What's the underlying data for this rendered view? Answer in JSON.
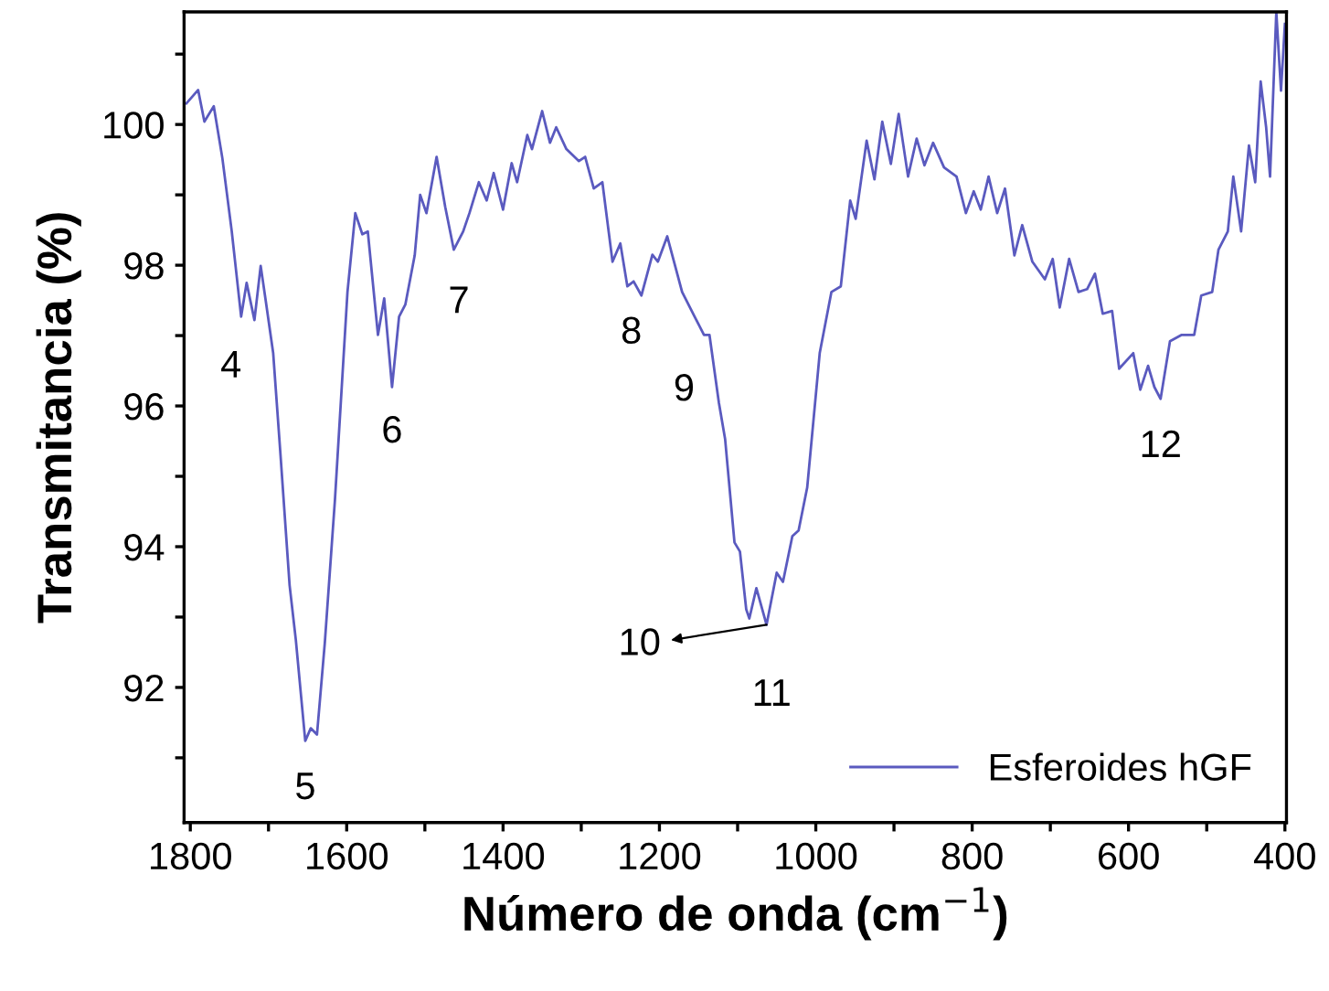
{
  "chart_data": {
    "type": "line",
    "xlabel": "Número de onda (cm$^{−1}$)",
    "ylabel": "Transmitancia (%)",
    "xlim": [
      1808,
      398
    ],
    "ylim": [
      90.08,
      101.6
    ],
    "xticks": [
      1800,
      {
        "value": 1700,
        "label": null
      },
      1600,
      {
        "value": 1500,
        "label": null
      },
      1400,
      {
        "value": 1300,
        "label": null
      },
      1200,
      {
        "value": 1100,
        "label": null
      },
      1000,
      {
        "value": 900,
        "label": null
      },
      800,
      {
        "value": 700,
        "label": null
      },
      600,
      {
        "value": 500,
        "label": null
      },
      400
    ],
    "yticks": [
      {
        "value": 91,
        "label": null
      },
      92,
      {
        "value": 93,
        "label": null
      },
      94,
      {
        "value": 95,
        "label": null
      },
      96,
      {
        "value": 97,
        "label": null
      },
      98,
      {
        "value": 99,
        "label": null
      },
      100,
      {
        "value": 101,
        "label": null
      }
    ],
    "grid": false,
    "legend": "bottom right",
    "series": [
      {
        "name": "Esferoides hGF",
        "color": "#5a5abf",
        "x": [
          1805,
          1790,
          1782,
          1770,
          1759,
          1747,
          1735,
          1728,
          1718,
          1710,
          1704,
          1694,
          1685,
          1673,
          1665,
          1653,
          1646,
          1638,
          1628,
          1615,
          1599,
          1589,
          1580,
          1573,
          1560,
          1552,
          1542,
          1533,
          1525,
          1513,
          1506,
          1498,
          1485,
          1474,
          1463,
          1451,
          1443,
          1431,
          1421,
          1412,
          1400,
          1389,
          1382,
          1369,
          1363,
          1350,
          1340,
          1332,
          1319,
          1303,
          1295,
          1284,
          1273,
          1260,
          1250,
          1241,
          1233,
          1223,
          1209,
          1202,
          1190,
          1171,
          1155,
          1143,
          1136,
          1124,
          1116,
          1104,
          1097,
          1089,
          1085,
          1076,
          1063,
          1050,
          1042,
          1030,
          1022,
          1011,
          995,
          980,
          968,
          956,
          949,
          935,
          925,
          915,
          904,
          894,
          882,
          871,
          861,
          850,
          836,
          820,
          808,
          798,
          789,
          779,
          768,
          758,
          746,
          736,
          723,
          707,
          697,
          688,
          676,
          664,
          653,
          643,
          633,
          621,
          612,
          594,
          585,
          575,
          567,
          559,
          547,
          532,
          516,
          507,
          493,
          485,
          473,
          466,
          456,
          446,
          438,
          431,
          424,
          419,
          411,
          405,
          400
        ],
        "values": [
          100.3,
          100.49,
          100.04,
          100.26,
          99.52,
          98.48,
          97.27,
          97.75,
          97.22,
          97.99,
          97.53,
          96.75,
          95.36,
          93.45,
          92.67,
          91.24,
          91.42,
          91.33,
          92.63,
          94.67,
          97.62,
          98.74,
          98.44,
          98.48,
          97.01,
          97.53,
          96.27,
          97.27,
          97.44,
          98.14,
          99.0,
          98.74,
          99.54,
          98.83,
          98.22,
          98.48,
          98.74,
          99.18,
          98.92,
          99.31,
          98.79,
          99.45,
          99.18,
          99.85,
          99.65,
          100.19,
          99.74,
          99.96,
          99.65,
          99.48,
          99.54,
          99.09,
          99.18,
          98.05,
          98.31,
          97.7,
          97.77,
          97.57,
          98.15,
          98.05,
          98.41,
          97.62,
          97.27,
          97.01,
          97.01,
          96.05,
          95.53,
          94.06,
          93.93,
          93.11,
          92.98,
          93.41,
          92.89,
          93.63,
          93.5,
          94.15,
          94.23,
          94.84,
          96.75,
          97.62,
          97.7,
          98.92,
          98.66,
          99.77,
          99.22,
          100.04,
          99.44,
          100.15,
          99.26,
          99.8,
          99.42,
          99.74,
          99.39,
          99.26,
          98.74,
          99.05,
          98.79,
          99.26,
          98.74,
          99.09,
          98.14,
          98.57,
          98.05,
          97.8,
          98.09,
          97.4,
          98.09,
          97.62,
          97.66,
          97.88,
          97.31,
          97.35,
          96.53,
          96.75,
          96.23,
          96.57,
          96.27,
          96.1,
          96.92,
          97.01,
          97.01,
          97.57,
          97.62,
          98.22,
          98.48,
          99.26,
          98.48,
          99.7,
          99.18,
          100.61,
          99.96,
          99.26,
          101.6,
          100.48,
          101.43
        ]
      }
    ],
    "annotations": [
      {
        "text": "4",
        "x": 1735,
        "y": 97.27
      },
      {
        "text": "5",
        "x": 1653,
        "y": 91.24
      },
      {
        "text": "6",
        "x": 1542,
        "y": 96.27
      },
      {
        "text": "7",
        "x": 1463,
        "y": 98.22
      },
      {
        "text": "8",
        "x": 1223,
        "y": 97.57
      },
      {
        "text": "9",
        "x": 1136,
        "y": 97.01
      },
      {
        "text": "10",
        "x": 1063,
        "y": 92.89
      },
      {
        "text": "11",
        "x": 1063,
        "y": 92.89
      },
      {
        "text": "12",
        "x": 559,
        "y": 96.1
      }
    ]
  }
}
